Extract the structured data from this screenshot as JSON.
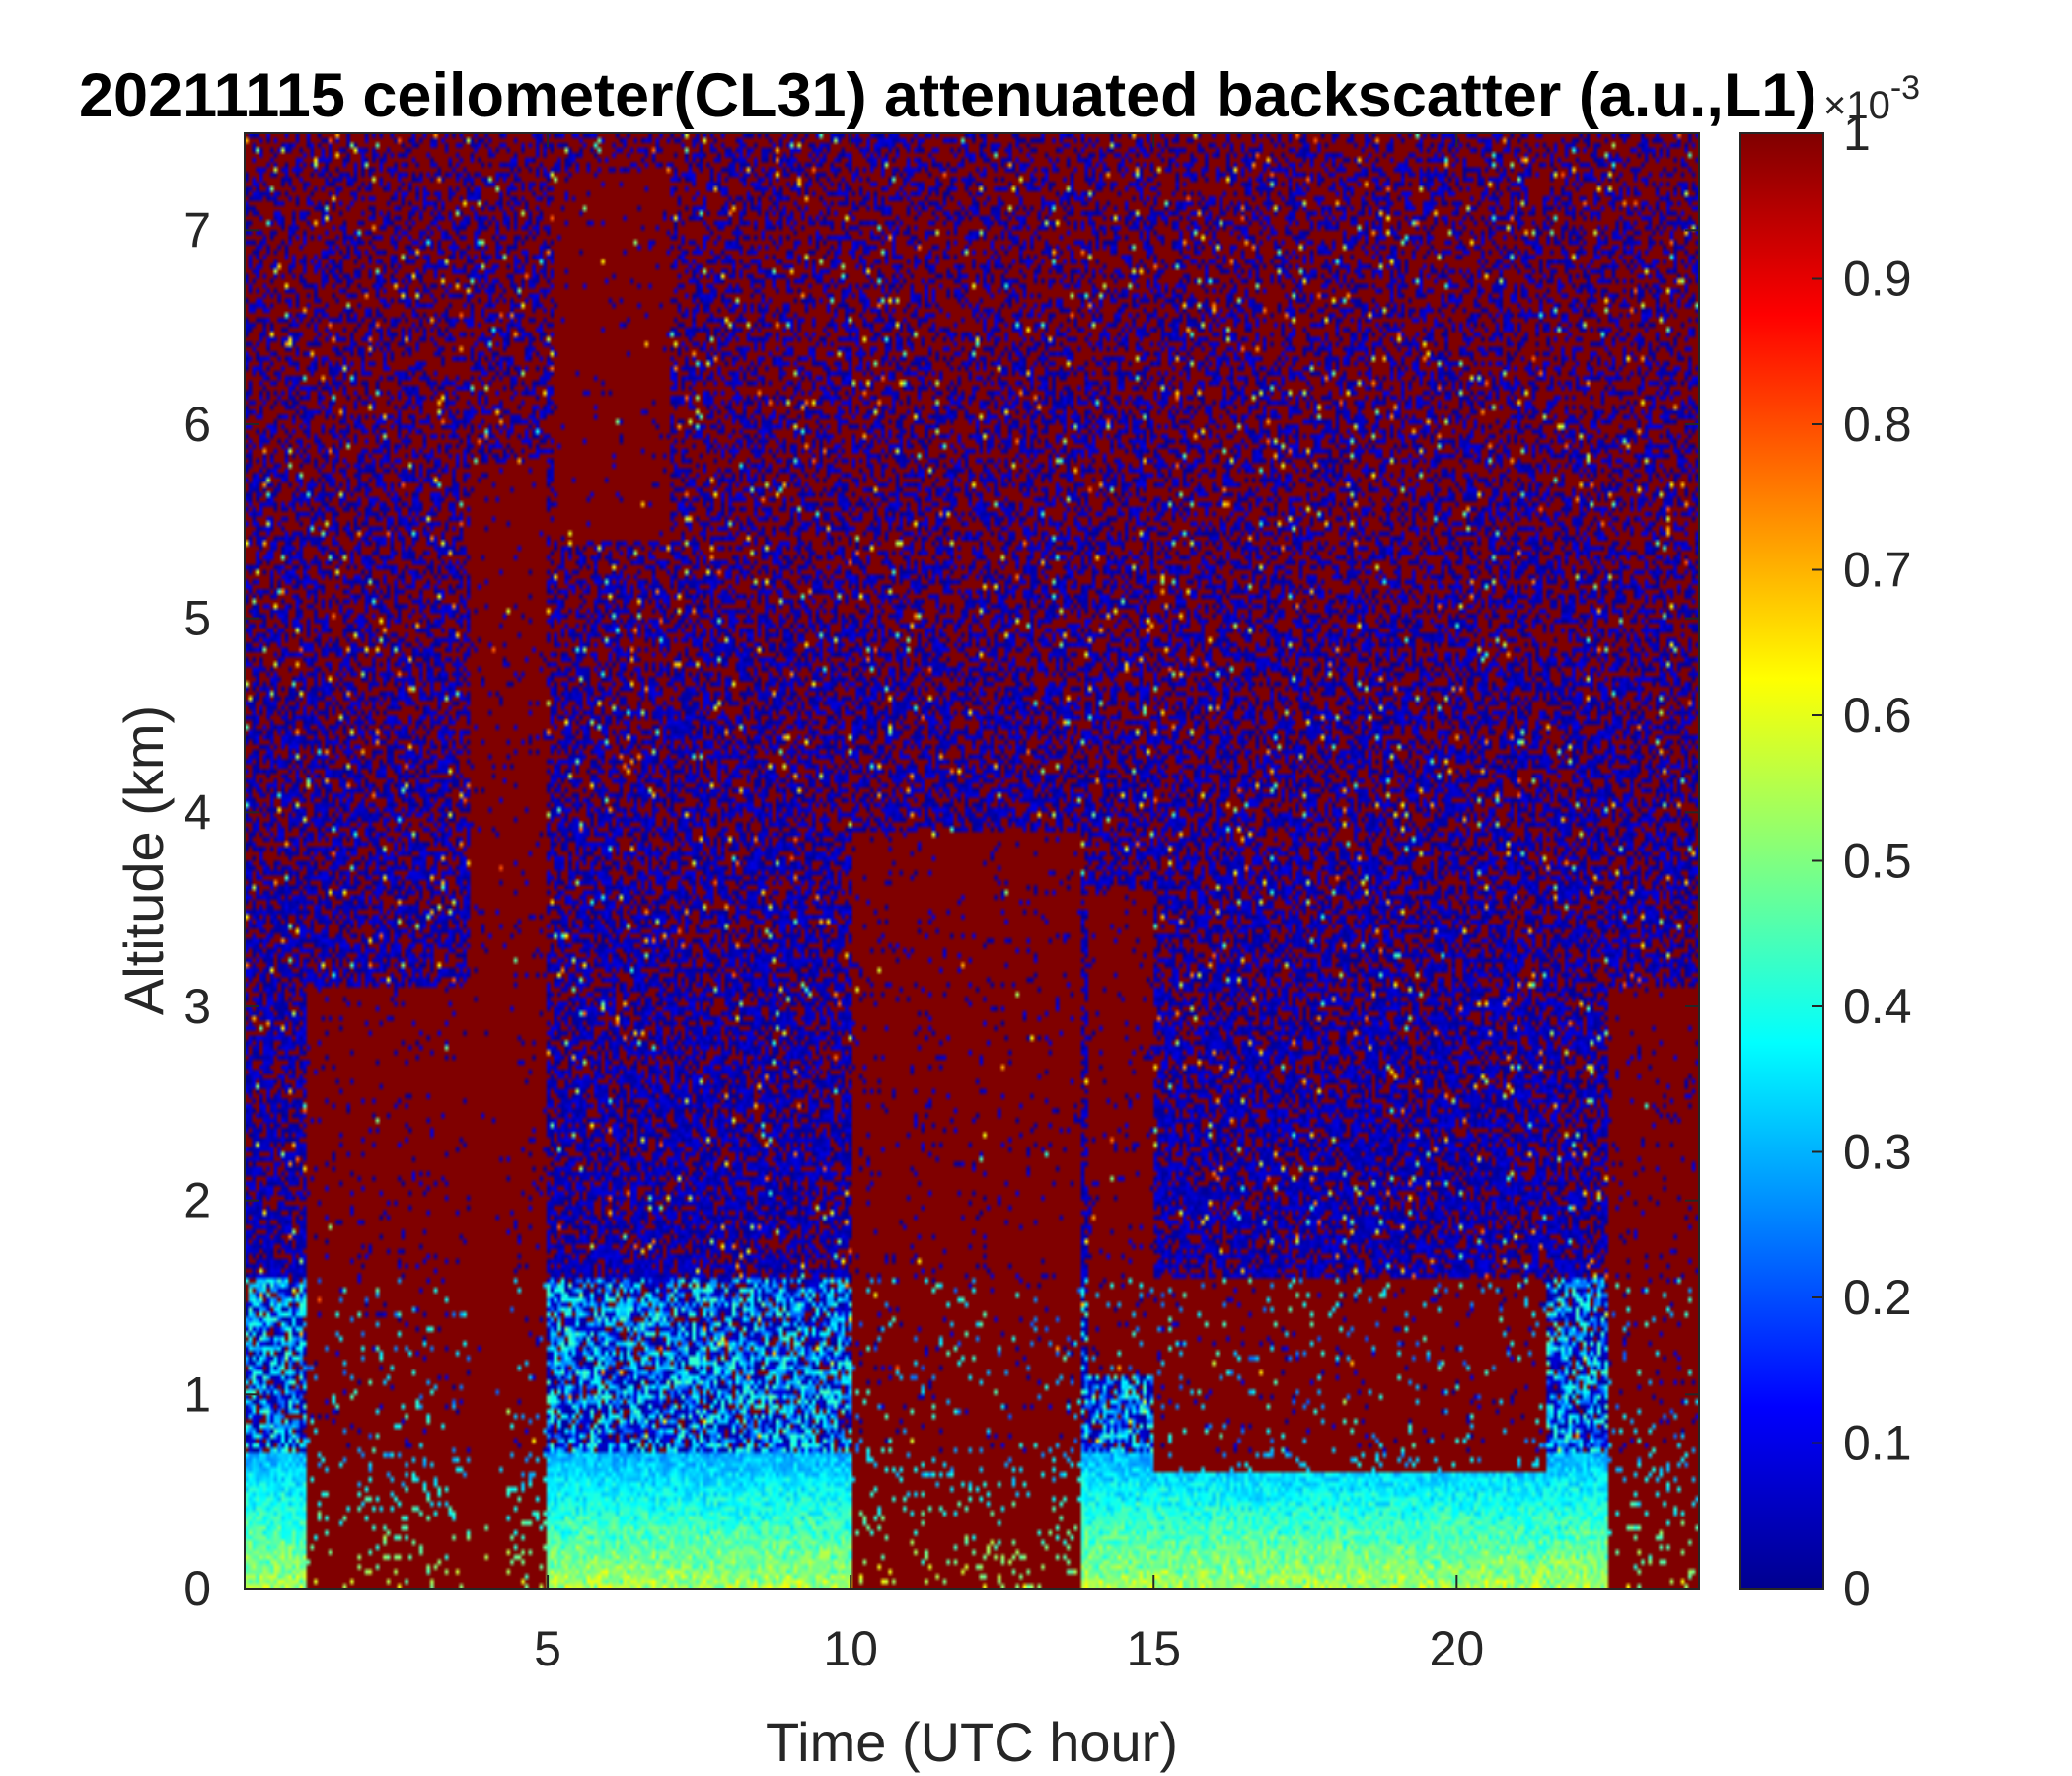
{
  "chart_data": {
    "type": "heatmap",
    "title": "20211115 ceilometer(CL31) attenuated backscatter (a.u.,L1)",
    "xlabel": "Time (UTC hour)",
    "ylabel": "Altitude (km)",
    "xlim": [
      0,
      24
    ],
    "ylim": [
      0,
      7.5
    ],
    "xticks": [
      5,
      10,
      15,
      20
    ],
    "yticks": [
      0,
      1,
      2,
      3,
      4,
      5,
      6,
      7
    ],
    "colorbar": {
      "colormap": "jet",
      "clim": [
        0,
        0.001
      ],
      "ticks": [
        0,
        0.1,
        0.2,
        0.3,
        0.4,
        0.5,
        0.6,
        0.7,
        0.8,
        0.9,
        1
      ],
      "exponent_label": "×10",
      "exponent_power": "-3"
    },
    "features": {
      "background_noise": "alternating dark blue and dark red speckle at high altitude",
      "boundary_layer": {
        "altitude_km": [
          0,
          0.7
        ],
        "level_scaled": [
          0.3,
          0.6
        ]
      },
      "saturated_plumes": [
        {
          "time_h": [
            1.0,
            4.3
          ],
          "altitude_km": [
            0,
            3.1
          ]
        },
        {
          "time_h": [
            3.7,
            5.0
          ],
          "altitude_km": [
            0,
            5.8
          ]
        },
        {
          "time_h": [
            5.1,
            7.0
          ],
          "altitude_km": [
            5.4,
            7.3
          ]
        },
        {
          "time_h": [
            10.0,
            13.8
          ],
          "altitude_km": [
            0,
            3.9
          ]
        },
        {
          "time_h": [
            13.9,
            15.0
          ],
          "altitude_km": [
            1.1,
            3.6
          ]
        },
        {
          "time_h": [
            15.0,
            21.5
          ],
          "altitude_km": [
            0.6,
            1.6
          ]
        },
        {
          "time_h": [
            22.5,
            24.0
          ],
          "altitude_km": [
            0,
            3.1
          ]
        }
      ]
    },
    "colors": {
      "jet_dark_blue": "#00008f",
      "jet_dark_red": "#800000",
      "axis": "#262626",
      "text": "#000000"
    }
  }
}
